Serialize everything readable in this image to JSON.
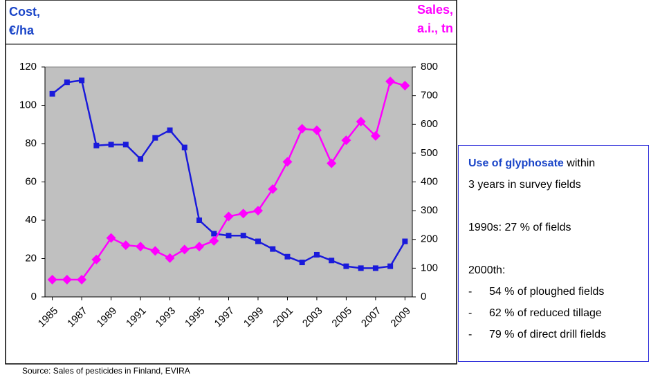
{
  "chart_data": {
    "type": "line",
    "y_label_lines": [
      "Cost,",
      "€/ha"
    ],
    "y2_label_lines": [
      "Sales,",
      "a.i., tn"
    ],
    "x": [
      1985,
      1986,
      1987,
      1988,
      1989,
      1990,
      1991,
      1992,
      1993,
      1994,
      1995,
      1996,
      1997,
      1998,
      1999,
      2000,
      2001,
      2002,
      2003,
      2004,
      2005,
      2006,
      2007,
      2008,
      2009
    ],
    "xlim": [
      1984.5,
      2009.5
    ],
    "xticks": [
      1985,
      1987,
      1989,
      1991,
      1993,
      1995,
      1997,
      1999,
      2001,
      2003,
      2005,
      2007,
      2009
    ],
    "ylim": [
      0,
      120
    ],
    "yticks": [
      0,
      20,
      40,
      60,
      80,
      100,
      120
    ],
    "y2lim": [
      0,
      800
    ],
    "y2ticks": [
      0,
      100,
      200,
      300,
      400,
      500,
      600,
      700,
      800
    ],
    "series": [
      {
        "name": "Cost",
        "color": "#1a1adb",
        "values": [
          106,
          112,
          113,
          79,
          79.5,
          79.5,
          72,
          83,
          87,
          78,
          40,
          33,
          32,
          32,
          29,
          25,
          21,
          18,
          22,
          19,
          16,
          15,
          15,
          16,
          29
        ]
      },
      {
        "name": "Sales",
        "color": "#ff00ff",
        "axis": "y2",
        "values": [
          60,
          60,
          60,
          130,
          205,
          180,
          175,
          160,
          135,
          165,
          175,
          195,
          280,
          290,
          300,
          375,
          470,
          585,
          580,
          465,
          545,
          610,
          560,
          750,
          735
        ]
      }
    ]
  },
  "note": {
    "heading": "Use of glyphosate",
    "heading_rest": " within",
    "line2": "3 years in survey fields",
    "line3": "1990s:  27 % of fields",
    "line4": "2000th:",
    "bullets": [
      "54 % of ploughed fields",
      "62 % of reduced tillage",
      "79 % of direct drill fields"
    ],
    "dash": "-"
  },
  "source": "Source: Sales of pesticides in Finland, EVIRA"
}
